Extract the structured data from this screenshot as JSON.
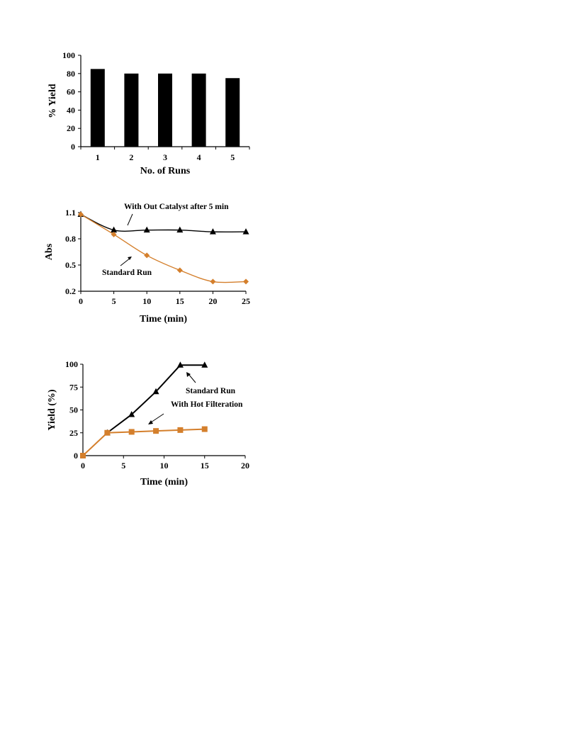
{
  "chart_data": [
    {
      "type": "bar",
      "xlabel": "No. of Runs",
      "ylabel": "% Yield",
      "categories": [
        "1",
        "2",
        "3",
        "4",
        "5"
      ],
      "values": [
        85,
        80,
        80,
        80,
        75
      ],
      "ylim": [
        0,
        100
      ],
      "yticks": [
        0,
        20,
        40,
        60,
        80,
        100
      ],
      "colors": {
        "bar": "#000000"
      },
      "grid": false
    },
    {
      "type": "line",
      "xlabel": "Time (min)",
      "ylabel": "Abs",
      "xlim": [
        0,
        25
      ],
      "ylim": [
        0.2,
        1.1
      ],
      "xticks": [
        0,
        5,
        10,
        15,
        20,
        25
      ],
      "yticks": [
        0.2,
        0.5,
        0.8,
        1.1
      ],
      "ytick_labels": [
        "0.2",
        "0.5",
        "0.8",
        "1.1"
      ],
      "series": [
        {
          "name": "With Out Catalyst after 5 min",
          "marker": "triangle",
          "color": "#000000",
          "x": [
            0,
            5,
            10,
            15,
            20,
            25
          ],
          "y": [
            1.08,
            0.9,
            0.9,
            0.9,
            0.88,
            0.88
          ]
        },
        {
          "name": "Standard Run",
          "marker": "diamond",
          "color": "#d47f2c",
          "x": [
            0,
            5,
            10,
            15,
            20,
            25
          ],
          "y": [
            1.08,
            0.85,
            0.61,
            0.44,
            0.31,
            0.31
          ]
        }
      ],
      "grid": false
    },
    {
      "type": "line",
      "xlabel": "Time (min)",
      "ylabel": "Yield (%)",
      "xlim": [
        0,
        20
      ],
      "ylim": [
        0,
        100
      ],
      "xticks": [
        0,
        5,
        10,
        15,
        20
      ],
      "yticks": [
        0,
        25,
        50,
        75,
        100
      ],
      "series": [
        {
          "name": "Standard Run",
          "marker": "triangle",
          "color": "#000000",
          "x": [
            3,
            6,
            9,
            12,
            15
          ],
          "y": [
            25,
            45,
            70,
            99,
            99
          ]
        },
        {
          "name": "With Hot Filteration",
          "marker": "square",
          "color": "#d47f2c",
          "x": [
            0,
            3,
            6,
            9,
            12,
            15
          ],
          "y": [
            0,
            25,
            26,
            27,
            28,
            29
          ]
        }
      ],
      "grid": false
    }
  ]
}
